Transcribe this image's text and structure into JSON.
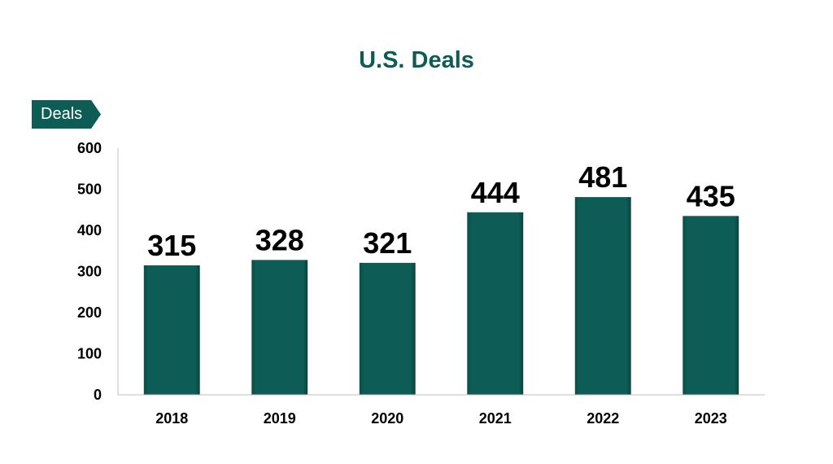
{
  "chart_data": {
    "type": "bar",
    "title": "U.S. Deals",
    "ylabel": "Deals",
    "xlabel": "",
    "categories": [
      "2018",
      "2019",
      "2020",
      "2021",
      "2022",
      "2023"
    ],
    "values": [
      315,
      328,
      321,
      444,
      481,
      435
    ],
    "ylim": [
      0,
      600
    ],
    "yticks": [
      0,
      100,
      200,
      300,
      400,
      500,
      600
    ],
    "grid": false,
    "bar_color": "#0d5c55",
    "data_labels": true
  }
}
